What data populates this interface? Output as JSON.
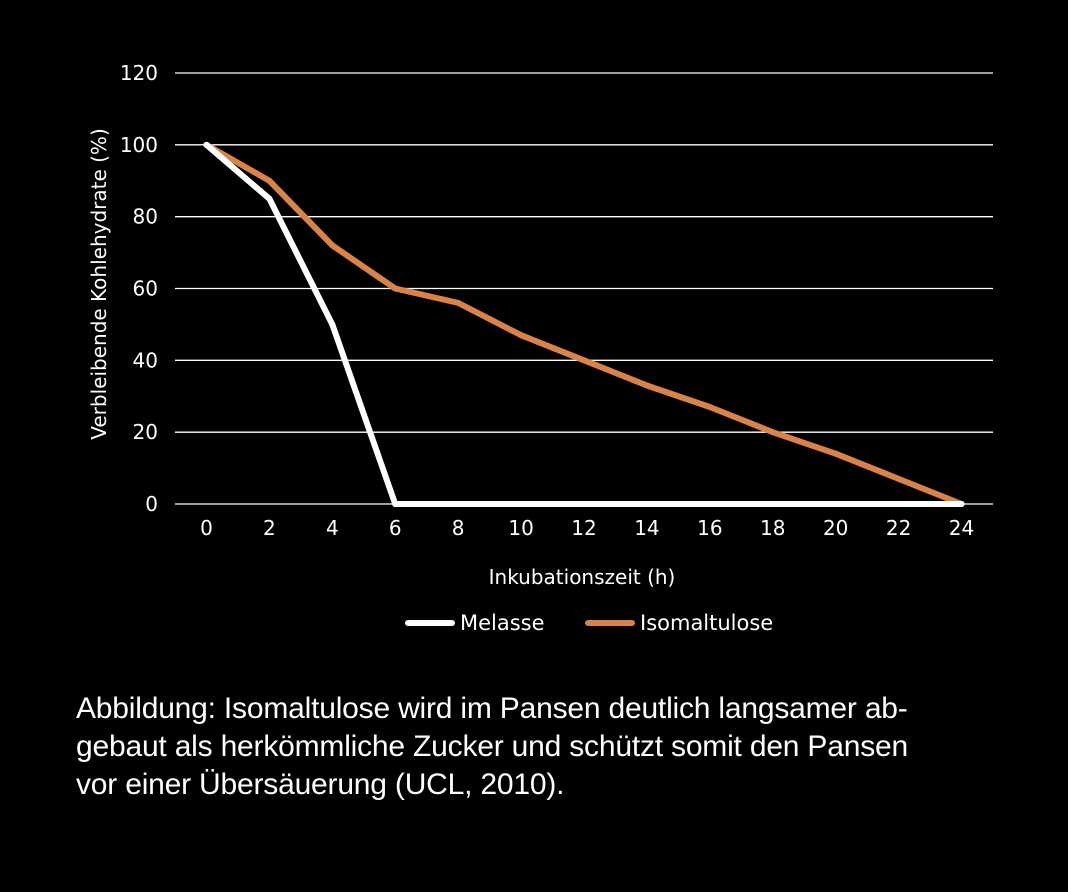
{
  "chart_data": {
    "type": "line",
    "xlabel": "Inkubationszeit (h)",
    "ylabel": "Verbleibende Kohlehydrate (%)",
    "x": [
      0,
      2,
      4,
      6,
      8,
      10,
      12,
      14,
      16,
      18,
      20,
      22,
      24
    ],
    "xticks": [
      "0",
      "2",
      "4",
      "6",
      "8",
      "10",
      "12",
      "14",
      "16",
      "18",
      "20",
      "22",
      "24"
    ],
    "yticks": [
      "0",
      "20",
      "40",
      "60",
      "80",
      "100",
      "120"
    ],
    "xlim": [
      -1,
      25
    ],
    "ylim": [
      0,
      120
    ],
    "grid": "horizontal",
    "legend_position": "bottom",
    "series": [
      {
        "name": "Melasse",
        "color": "#ffffff",
        "values": [
          100,
          85,
          50,
          0,
          0,
          0,
          0,
          0,
          0,
          0,
          0,
          0,
          0
        ]
      },
      {
        "name": "Isomaltulose",
        "color": "#d9834a",
        "values": [
          100,
          90,
          72,
          60,
          56,
          47,
          40,
          33,
          27,
          20,
          14,
          7,
          0
        ]
      }
    ]
  },
  "caption": {
    "lines": [
      "Abbildung: Isomaltulose wird im Pansen deutlich langsamer ab-",
      "gebaut als herkömmliche Zucker und schützt somit den Pansen",
      "vor einer Übersäuerung (UCL, 2010)."
    ]
  }
}
